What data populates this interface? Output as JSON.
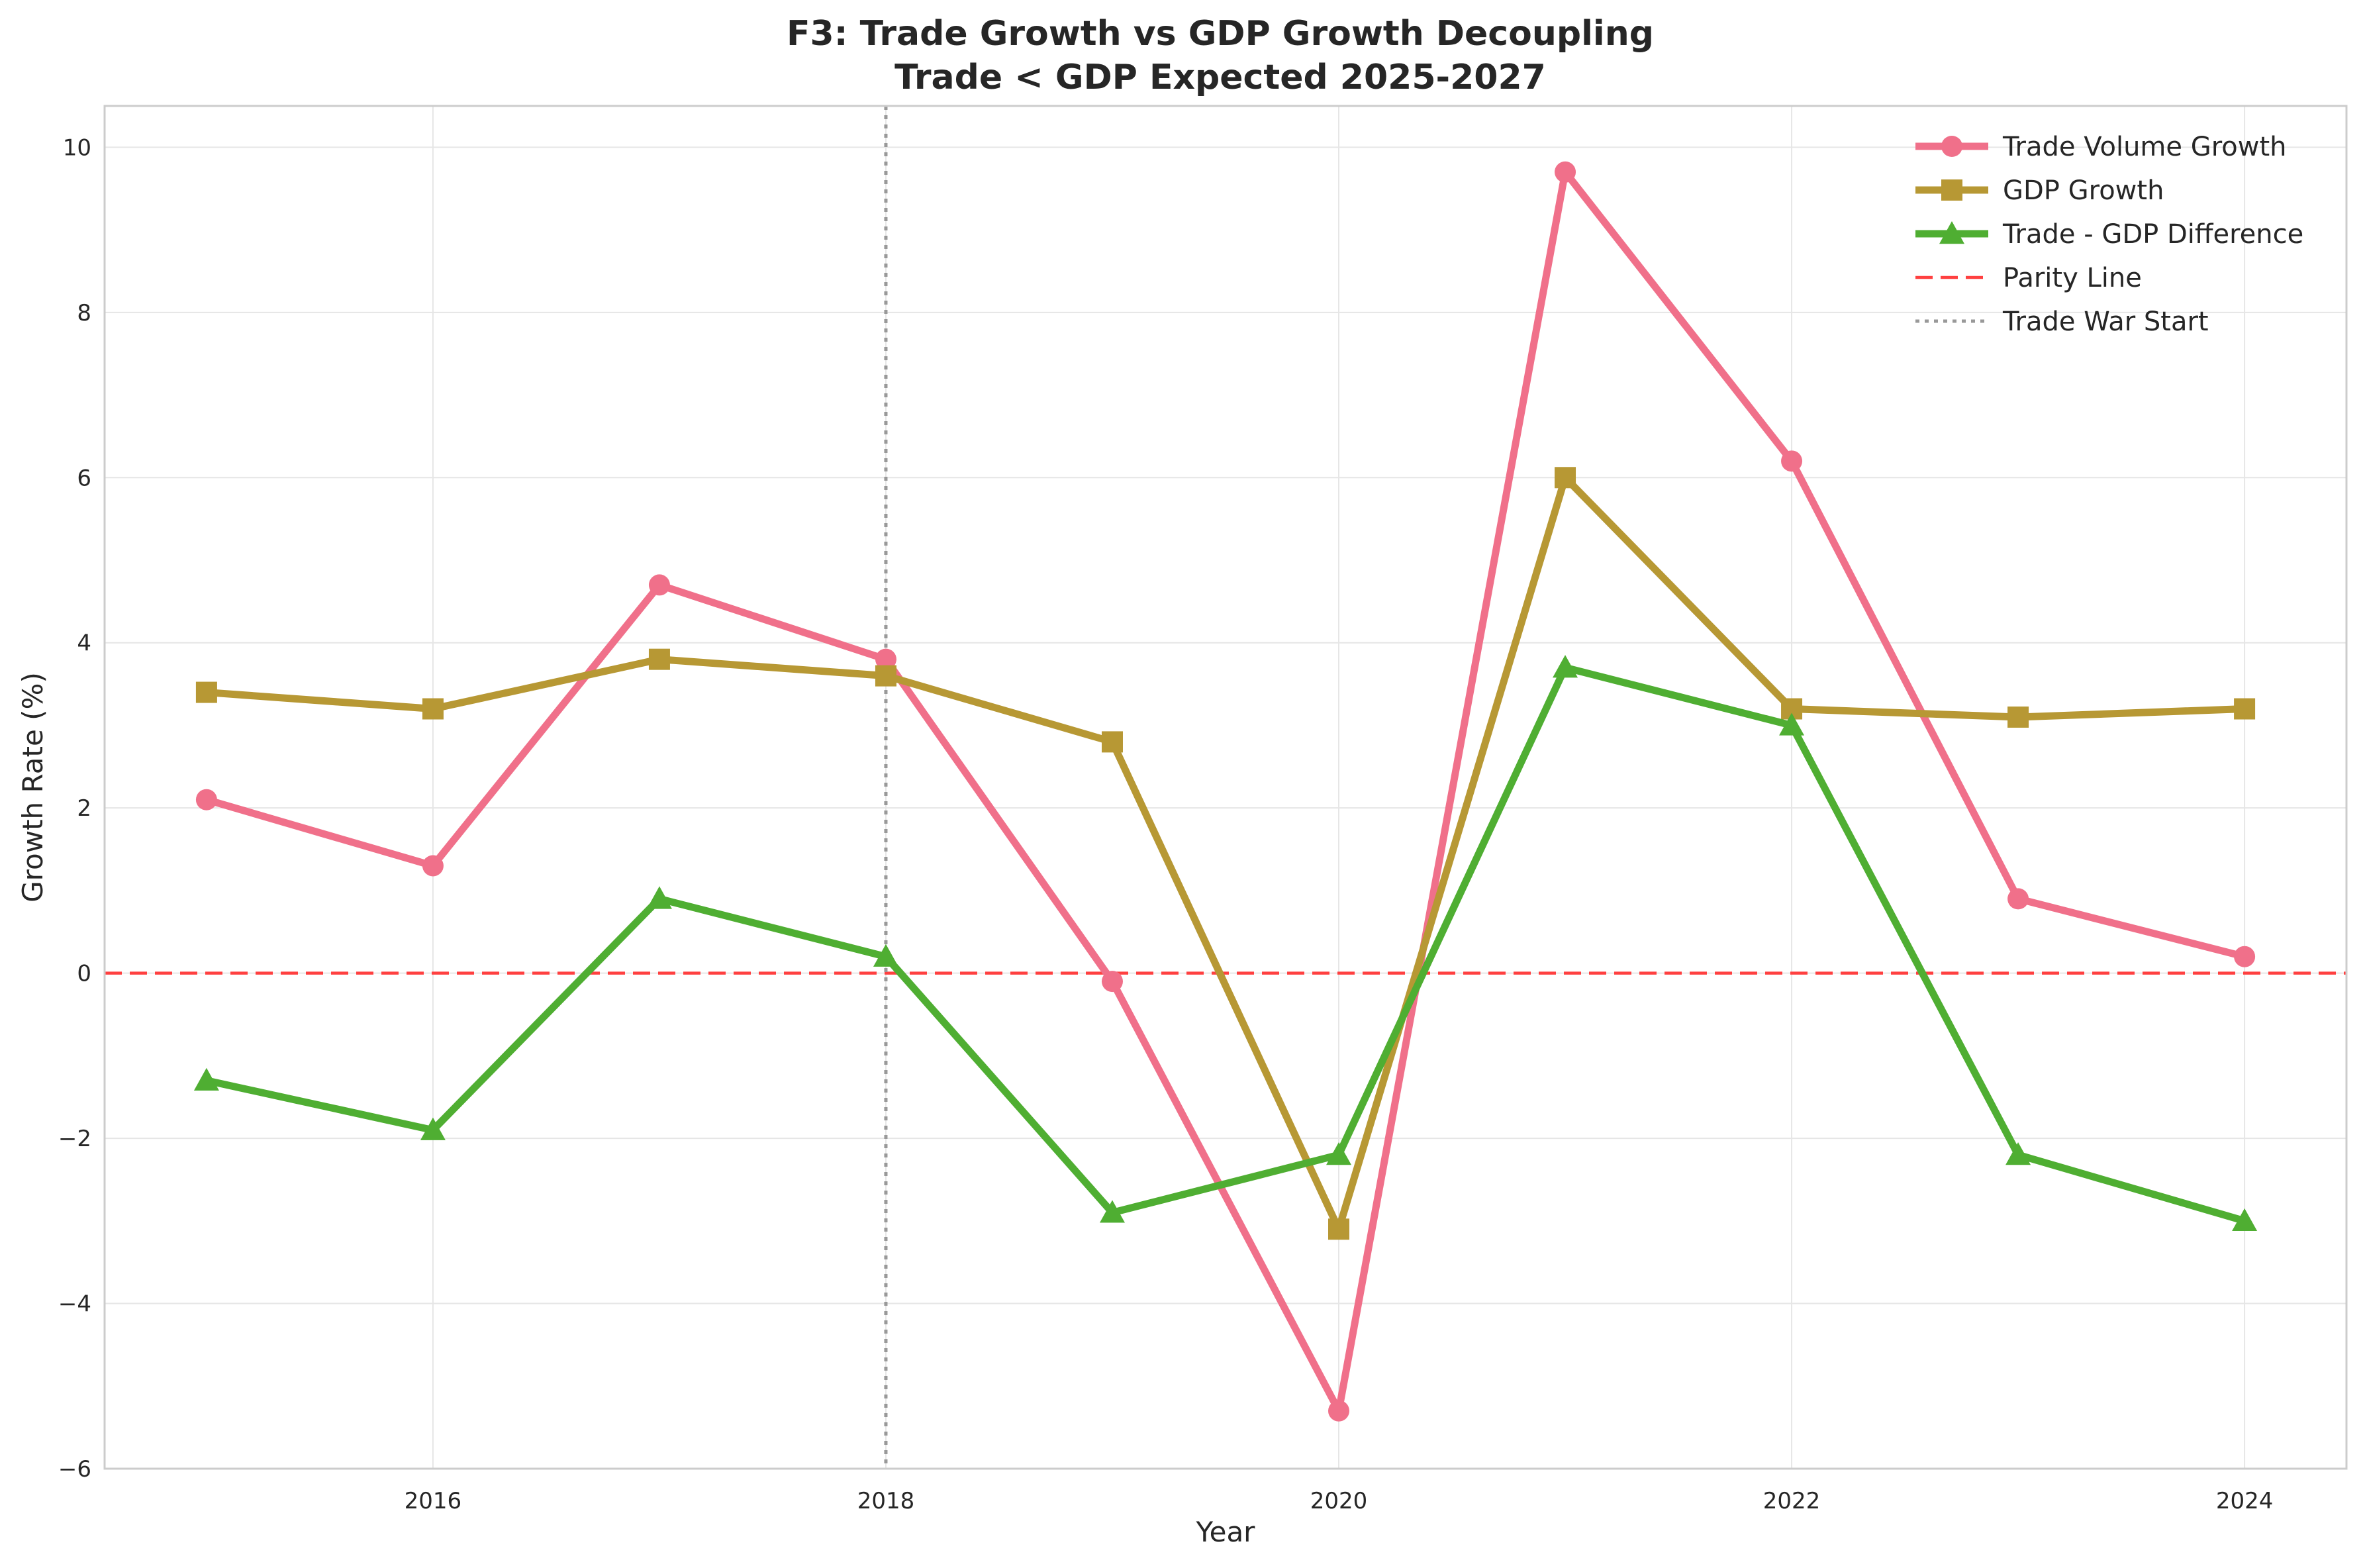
{
  "chart_data": {
    "type": "line",
    "title_lines": [
      "F3: Trade Growth vs GDP Growth Decoupling",
      "Trade < GDP Expected 2025-2027"
    ],
    "xlabel": "Year",
    "ylabel": "Growth Rate (%)",
    "xlim": [
      2014.55,
      2024.45
    ],
    "ylim": [
      -6,
      10.5
    ],
    "x": [
      2015,
      2016,
      2017,
      2018,
      2019,
      2020,
      2021,
      2022,
      2023,
      2024
    ],
    "x_ticks": [
      2016,
      2018,
      2020,
      2022,
      2024
    ],
    "y_ticks": [
      -6,
      -4,
      -2,
      0,
      2,
      4,
      6,
      8,
      10
    ],
    "grid": true,
    "legend_position": "top-right",
    "series": [
      {
        "name": "Trade Volume Growth",
        "color": "#f0708a",
        "marker": "circle",
        "values": [
          2.1,
          1.3,
          4.7,
          3.8,
          -0.1,
          -5.3,
          9.7,
          6.2,
          0.9,
          0.2
        ]
      },
      {
        "name": "GDP Growth",
        "color": "#b79834",
        "marker": "square",
        "values": [
          3.4,
          3.2,
          3.8,
          3.6,
          2.8,
          -3.1,
          6.0,
          3.2,
          3.1,
          3.2
        ]
      },
      {
        "name": "Trade - GDP Difference",
        "color": "#4fae32",
        "marker": "triangle",
        "values": [
          -1.3,
          -1.9,
          0.9,
          0.2,
          -2.9,
          -2.2,
          3.7,
          3.0,
          -2.2,
          -3.0
        ]
      }
    ],
    "reference_lines": [
      {
        "name": "Parity Line",
        "orientation": "horizontal",
        "value": 0,
        "color": "#ff4040",
        "style": "dashed"
      },
      {
        "name": "Trade War Start",
        "orientation": "vertical",
        "value": 2018,
        "color": "#999999",
        "style": "dotted"
      }
    ]
  }
}
